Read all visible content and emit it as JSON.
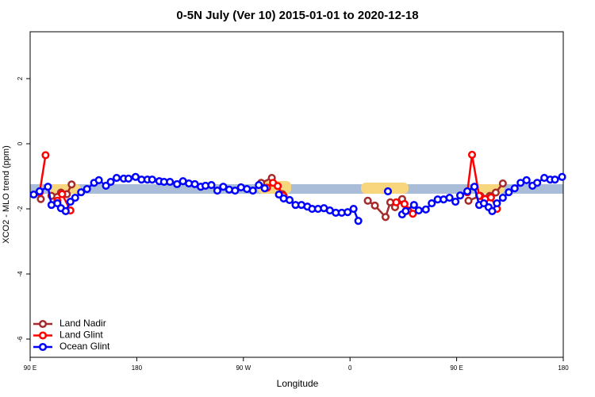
{
  "chart_data": {
    "type": "line",
    "title": "0-5N July (Ver 10)   2015-01-01 to 2020-12-18",
    "xlabel": "Longitude",
    "ylabel": "XCO2 - MLO trend (ppm)",
    "xlim": [
      90,
      540
    ],
    "xticks": [
      {
        "value": 90,
        "label": "90 E"
      },
      {
        "value": 180,
        "label": "180"
      },
      {
        "value": 270,
        "label": "90 W"
      },
      {
        "value": 360,
        "label": "0"
      },
      {
        "value": 450,
        "label": "90 E"
      },
      {
        "value": 540,
        "label": "180"
      }
    ],
    "ylim": [
      -6.56,
      3.44
    ],
    "yticks": [
      -6,
      -4,
      -2,
      0,
      2
    ],
    "legend": "bottom-left",
    "series": [
      {
        "name": "Land Nadir",
        "color": "#a52a2a",
        "x": [
          99,
          null,
          108,
          116,
          121,
          125,
          null,
          285,
          294,
          303,
          null,
          375,
          381,
          390,
          394,
          398,
          404,
          null,
          460,
          470,
          478,
          483,
          489
        ],
        "values": [
          -1.7,
          null,
          -1.6,
          -1.5,
          -1.55,
          -1.25,
          null,
          -1.2,
          -1.05,
          -1.55,
          null,
          -1.75,
          -1.9,
          -2.25,
          -1.8,
          -1.95,
          -1.7,
          null,
          -1.75,
          -1.6,
          -1.6,
          -1.5,
          -1.22
        ]
      },
      {
        "name": "Land Glint",
        "color": "#ff0000",
        "x": [
          98,
          103,
          null,
          113,
          117,
          124,
          null,
          290,
          295,
          299,
          304,
          null,
          399,
          406,
          409,
          413,
          null,
          459,
          463,
          469,
          474,
          479,
          484
        ],
        "values": [
          -1.5,
          -0.35,
          null,
          -1.75,
          -1.55,
          -2.05,
          null,
          -1.35,
          -1.2,
          -1.3,
          -1.6,
          null,
          -1.8,
          -1.85,
          -2.05,
          -2.15,
          null,
          -1.49,
          -0.34,
          -1.6,
          -1.7,
          -1.65,
          -2.0
        ]
      },
      {
        "name": "Ocean Glint",
        "color": "#0000ff",
        "x": [
          93,
          98,
          105,
          108,
          113,
          116,
          120,
          124,
          128,
          133,
          138,
          144,
          148,
          154,
          158,
          163,
          169,
          173,
          179,
          184,
          189,
          193,
          199,
          203,
          208,
          214,
          219,
          224,
          229,
          234,
          238,
          243,
          248,
          253,
          258,
          263,
          268,
          273,
          278,
          283,
          288,
          null,
          300,
          304,
          309,
          314,
          319,
          324,
          328,
          333,
          338,
          343,
          348,
          353,
          358,
          363,
          367,
          null,
          392,
          null,
          404,
          407,
          414,
          418,
          424,
          429,
          434,
          439,
          444,
          449,
          453,
          459,
          465,
          469,
          473,
          477,
          480,
          484,
          489,
          494,
          499,
          504,
          509,
          514,
          518,
          524,
          529,
          533,
          539
        ],
        "values": [
          -1.56,
          -1.46,
          -1.32,
          -1.88,
          -1.83,
          -1.98,
          -2.07,
          -1.78,
          -1.66,
          -1.49,
          -1.39,
          -1.2,
          -1.12,
          -1.29,
          -1.17,
          -1.05,
          -1.07,
          -1.07,
          -1.02,
          -1.1,
          -1.1,
          -1.1,
          -1.15,
          -1.17,
          -1.17,
          -1.24,
          -1.15,
          -1.22,
          -1.24,
          -1.32,
          -1.29,
          -1.27,
          -1.44,
          -1.32,
          -1.41,
          -1.44,
          -1.34,
          -1.39,
          -1.44,
          -1.27,
          -1.37,
          null,
          -1.56,
          -1.68,
          -1.73,
          -1.88,
          -1.88,
          -1.93,
          -2.0,
          -2.0,
          -1.98,
          -2.05,
          -2.12,
          -2.12,
          -2.1,
          -2.0,
          -2.37,
          null,
          -1.46,
          null,
          -2.17,
          -2.07,
          -1.88,
          -2.05,
          -2.02,
          -1.83,
          -1.71,
          -1.71,
          -1.66,
          -1.78,
          -1.59,
          -1.46,
          -1.32,
          -1.88,
          -1.83,
          -1.95,
          -2.07,
          -1.83,
          -1.66,
          -1.49,
          -1.37,
          -1.2,
          -1.12,
          -1.29,
          -1.2,
          -1.05,
          -1.1,
          -1.1,
          -1.02
        ]
      }
    ]
  }
}
